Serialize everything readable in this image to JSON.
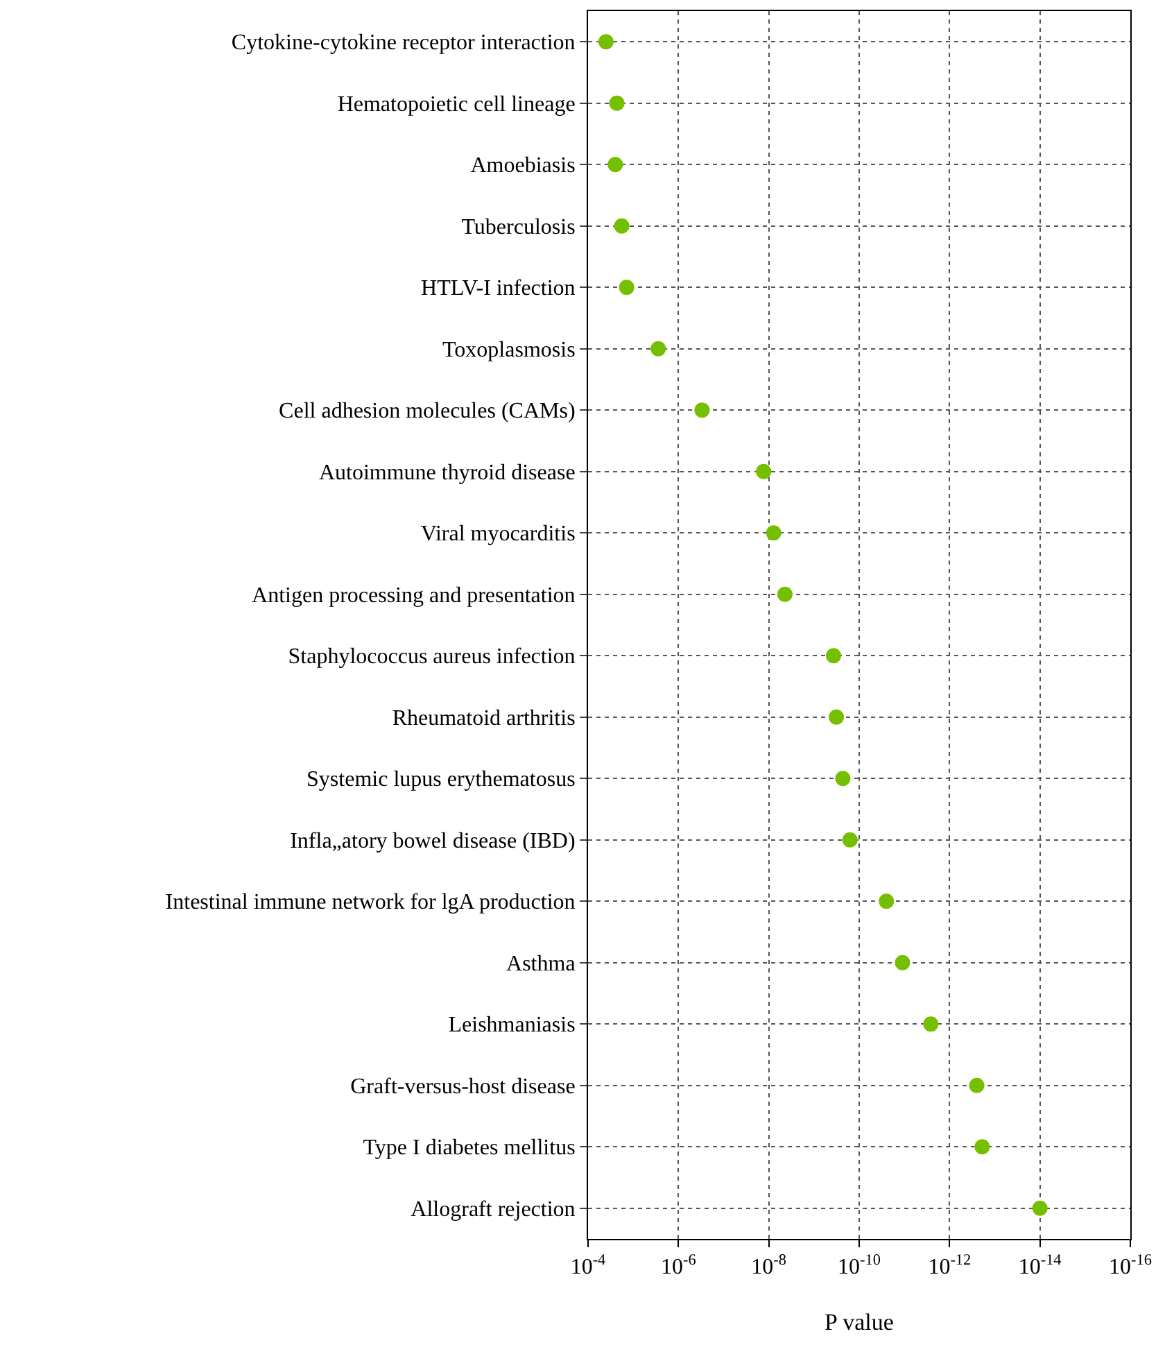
{
  "chart_data": {
    "type": "scatter",
    "orientation": "horizontal",
    "xlabel": "P value",
    "categories": [
      "Cytokine-cytokine receptor interaction",
      "Hematopoietic cell lineage",
      "Amoebiasis",
      "Tuberculosis",
      "HTLV-I infection",
      "Toxoplasmosis",
      "Cell adhesion molecules (CAMs)",
      "Autoimmune thyroid disease",
      "Viral myocarditis",
      "Antigen processing and presentation",
      "Staphylococcus aureus infection",
      "Rheumatoid arthritis",
      "Systemic lupus erythematosus",
      "Infla„atory bowel disease (IBD)",
      "Intestinal immune network for lgA production",
      "Asthma",
      "Leishmaniasis",
      "Graft-versus-host disease",
      "Type I diabetes mellitus",
      "Allograft rejection"
    ],
    "values": [
      4e-05,
      2.3e-05,
      2.5e-05,
      1.8e-05,
      1.4e-05,
      2.8e-06,
      3e-07,
      1.3e-08,
      7.8e-09,
      4.4e-09,
      3.7e-10,
      3.2e-10,
      2.3e-10,
      1.6e-10,
      2.5e-11,
      1.1e-11,
      2.6e-12,
      2.5e-13,
      1.9e-13,
      1e-14
    ],
    "color": "#73bf00",
    "marker": "circle",
    "log": "x",
    "grid": true,
    "xlim": [
      0.0001,
      1e-16
    ],
    "xticks": [
      {
        "value": 0.0001,
        "label": "10$^{-4}$"
      },
      {
        "value": 1e-06,
        "label": "10$^{-6}$"
      },
      {
        "value": 1e-08,
        "label": "10$^{-8}$"
      },
      {
        "value": 1e-10,
        "label": "10$^{-10}$"
      },
      {
        "value": 1e-12,
        "label": "10$^{-12}$"
      },
      {
        "value": 1e-14,
        "label": "10$^{-14}$"
      },
      {
        "value": 1e-16,
        "label": "10$^{-16}$"
      }
    ]
  }
}
